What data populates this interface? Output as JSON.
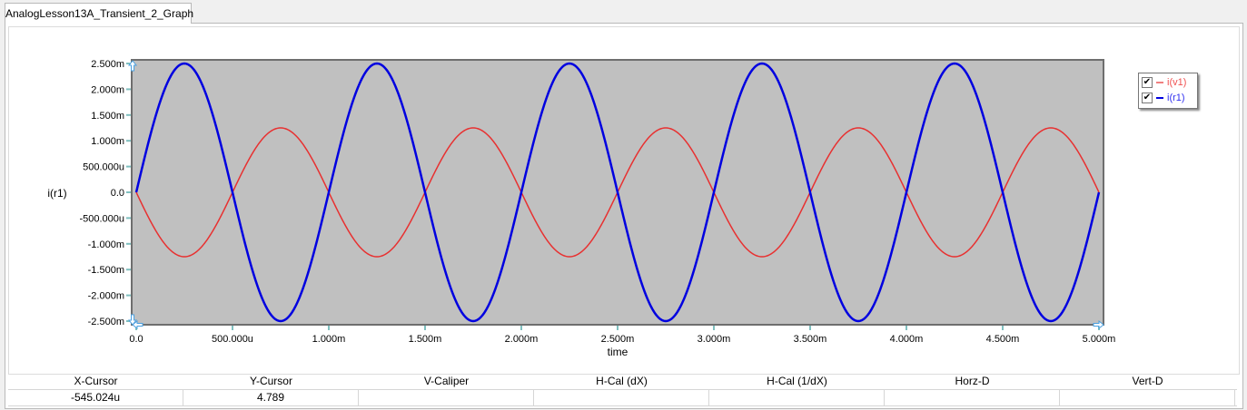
{
  "tab": {
    "title": "AnalogLesson13A_Transient_2_Graph"
  },
  "chart_data": {
    "type": "line",
    "xlabel": "time",
    "ylabel": "i(r1)",
    "xlim": [
      0,
      0.005
    ],
    "ylim": [
      -0.0025,
      0.0025
    ],
    "x_ticks": [
      "0.0",
      "500.000u",
      "1.000m",
      "1.500m",
      "2.000m",
      "2.500m",
      "3.000m",
      "3.500m",
      "4.000m",
      "4.500m",
      "5.000m"
    ],
    "y_ticks": [
      "2.500m",
      "2.000m",
      "1.500m",
      "1.000m",
      "500.000u",
      "0.0",
      "-500.000u",
      "-1.000m",
      "-1.500m",
      "-2.000m",
      "-2.500m"
    ],
    "plot_background": "#c0c0c0",
    "grid": false,
    "legend_position": "top-right",
    "series": [
      {
        "name": "i(v1)",
        "color": "#e83030",
        "waveform": "sine",
        "amplitude": -0.00125,
        "frequency_hz": 1000,
        "checked": true
      },
      {
        "name": "i(r1)",
        "color": "#0000e0",
        "waveform": "sine",
        "amplitude": 0.0025,
        "frequency_hz": 1000,
        "checked": true
      }
    ]
  },
  "cursor_table": {
    "headers": [
      "X-Cursor",
      "Y-Cursor",
      "V-Caliper",
      "H-Cal (dX)",
      "H-Cal (1/dX)",
      "Horz-D",
      "Vert-D"
    ],
    "values": [
      "-545.024u",
      "4.789",
      "",
      "",
      "",
      "",
      ""
    ]
  }
}
